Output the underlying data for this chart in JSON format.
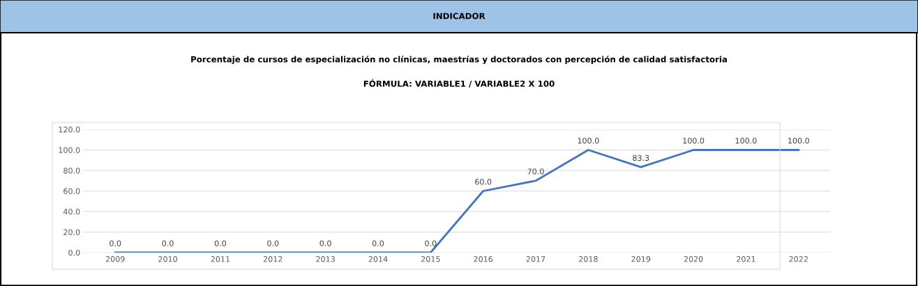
{
  "chart_data": {
    "type": "line",
    "title": "INDICADOR",
    "subtitle": "Porcentaje de cursos de especialización no clínicas, maestrías y doctorados con percepción de calidad satisfactoria",
    "annotations": [
      "FÓRMULA: VARIABLE1 / VARIABLE2 X 100"
    ],
    "categories": [
      "2009",
      "2010",
      "2011",
      "2012",
      "2013",
      "2014",
      "2015",
      "2016",
      "2017",
      "2018",
      "2019",
      "2020",
      "2021",
      "2022"
    ],
    "series": [
      {
        "color": "#4472c4",
        "values": [
          0,
          0,
          0,
          0,
          0,
          0,
          0,
          60,
          70,
          100,
          83.3,
          100,
          100,
          100
        ],
        "value_labels": [
          "0.0",
          "0.0",
          "0.0",
          "0.0",
          "0.0",
          "0.0",
          "0.0",
          "60.0",
          "70.0",
          "100.0",
          "83.3",
          "100.0",
          "100.0",
          "100.0"
        ]
      }
    ],
    "ylim": [
      0,
      120
    ],
    "yticks": [
      {
        "value": 0,
        "label": "0.0"
      },
      {
        "value": 20,
        "label": "20.0"
      },
      {
        "value": 40,
        "label": "40.0"
      },
      {
        "value": 60,
        "label": "60.0"
      },
      {
        "value": 80,
        "label": "80.0"
      },
      {
        "value": 100,
        "label": "100.0"
      },
      {
        "value": 120,
        "label": "120.0"
      }
    ],
    "grid": "y",
    "marker": "none",
    "line_style": "solid"
  }
}
